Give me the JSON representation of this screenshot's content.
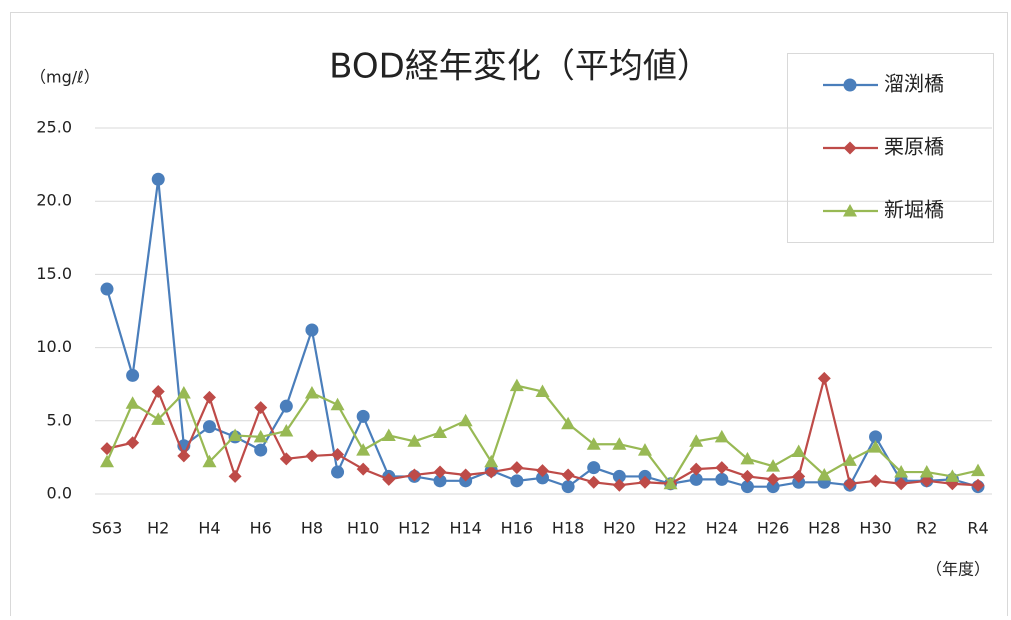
{
  "chart_data": {
    "type": "line",
    "title": "BOD経年変化（平均値）",
    "y_label": "（mg/ℓ）",
    "x_label": "（年度）",
    "categories": [
      "S63",
      null,
      "H2",
      null,
      "H4",
      null,
      "H6",
      null,
      "H8",
      null,
      "H10",
      null,
      "H12",
      null,
      "H14",
      null,
      "H16",
      null,
      "H18",
      null,
      "H20",
      null,
      "H22",
      null,
      "H24",
      null,
      "H26",
      null,
      "H28",
      null,
      "H30",
      null,
      "R2",
      null,
      "R4"
    ],
    "series": [
      {
        "name": "溜渕橋",
        "color": "#4a7ebb",
        "marker": "circle",
        "values": [
          14.0,
          8.1,
          21.5,
          3.3,
          4.6,
          3.9,
          3.0,
          6.0,
          11.2,
          1.5,
          5.3,
          1.2,
          1.2,
          0.9,
          0.9,
          1.6,
          0.9,
          1.1,
          0.5,
          1.8,
          1.2,
          1.2,
          0.7,
          1.0,
          1.0,
          0.5,
          0.5,
          0.8,
          0.8,
          0.6,
          3.9,
          0.9,
          0.9,
          1.0,
          0.5
        ]
      },
      {
        "name": "栗原橋",
        "color": "#be4b48",
        "marker": "diamond",
        "values": [
          3.1,
          3.5,
          7.0,
          2.6,
          6.6,
          1.2,
          5.9,
          2.4,
          2.6,
          2.7,
          1.7,
          1.0,
          1.3,
          1.5,
          1.3,
          1.5,
          1.8,
          1.6,
          1.3,
          0.8,
          0.6,
          0.8,
          0.7,
          1.7,
          1.8,
          1.2,
          1.0,
          1.2,
          7.9,
          0.7,
          0.9,
          0.7,
          0.9,
          0.7,
          0.6
        ]
      },
      {
        "name": "新堀橋",
        "color": "#98b954",
        "marker": "triangle",
        "values": [
          2.2,
          6.2,
          5.1,
          6.9,
          2.2,
          4.0,
          3.9,
          4.3,
          6.9,
          6.1,
          3.0,
          4.0,
          3.6,
          4.2,
          5.0,
          2.2,
          7.4,
          7.0,
          4.8,
          3.4,
          3.4,
          3.0,
          0.7,
          3.6,
          3.9,
          2.4,
          1.9,
          2.9,
          1.3,
          2.3,
          3.2,
          1.5,
          1.5,
          1.2,
          1.6
        ]
      }
    ],
    "ylim": [
      0,
      25
    ],
    "yticks": [
      {
        "value": 0,
        "label": "0.0"
      },
      {
        "value": 5,
        "label": "5.0"
      },
      {
        "value": 10,
        "label": "10.0"
      },
      {
        "value": 15,
        "label": "15.0"
      },
      {
        "value": 20,
        "label": "20.0"
      },
      {
        "value": 25,
        "label": "25.0"
      }
    ],
    "grid": true,
    "legend": "upper right"
  }
}
